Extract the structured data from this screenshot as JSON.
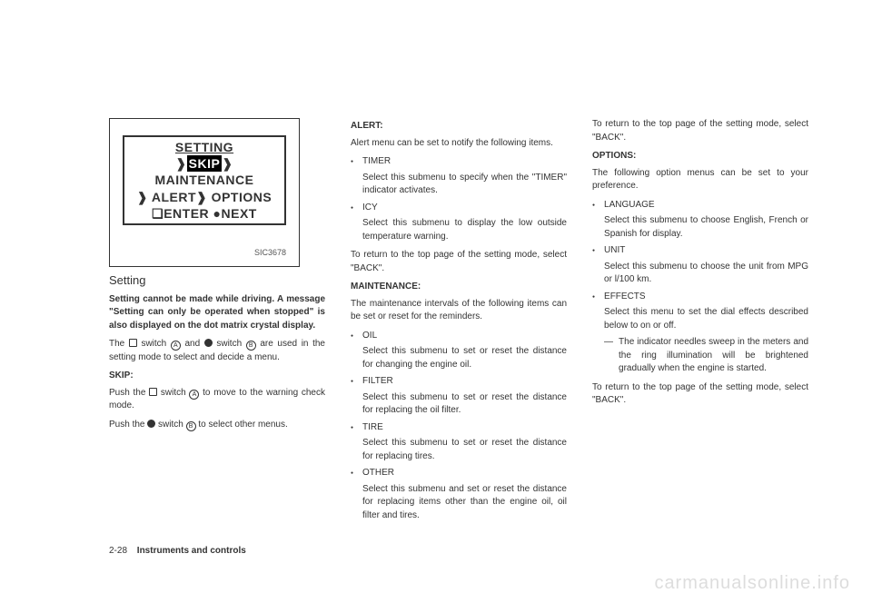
{
  "display": {
    "row1": "SETTING",
    "row2_pre": "❱",
    "row2_inv": "SKIP",
    "row2_post": "❱ MAINTENANCE",
    "row3": "❱ ALERT❱ OPTIONS",
    "row4": "❏ENTER ●NEXT",
    "code": "SIC3678"
  },
  "col1": {
    "heading": "Setting",
    "bold_para": "Setting cannot be made while driving. A message \"Setting can only be operated when stopped\" is also displayed on the dot matrix crystal display.",
    "para2_pre": "The ",
    "para2_mid1": " switch ",
    "para2_mid2": " and ",
    "para2_mid3": " switch ",
    "para2_post": " are used in the setting mode to select and decide a menu.",
    "skip_head": "SKIP:",
    "skip_p1_pre": "Push the ",
    "skip_p1_mid": " switch ",
    "skip_p1_post": " to move to the warning check mode.",
    "skip_p2_pre": "Push the ",
    "skip_p2_mid": " switch ",
    "skip_p2_post": " to select other menus."
  },
  "col2": {
    "alert_head": "ALERT:",
    "alert_intro": "Alert menu can be set to notify the following items.",
    "alert_items": [
      {
        "t": "TIMER",
        "d": "Select this submenu to specify when the \"TIMER\" indicator activates."
      },
      {
        "t": "ICY",
        "d": "Select this submenu to display the low outside temperature warning."
      }
    ],
    "alert_back": "To return to the top page of the setting mode, select \"BACK\".",
    "maint_head": "MAINTENANCE:",
    "maint_intro": "The maintenance intervals of the following items can be set or reset for the reminders.",
    "maint_items": [
      {
        "t": "OIL",
        "d": "Select this submenu to set or reset the distance for changing the engine oil."
      },
      {
        "t": "FILTER",
        "d": "Select this submenu to set or reset the distance for replacing the oil filter."
      },
      {
        "t": "TIRE",
        "d": "Select this submenu to set or reset the distance for replacing tires."
      },
      {
        "t": "OTHER",
        "d": "Select this submenu and set or reset the distance for replacing items other than the engine oil, oil filter and tires."
      }
    ]
  },
  "col3": {
    "back1": "To return to the top page of the setting mode, select \"BACK\".",
    "opt_head": "OPTIONS:",
    "opt_intro": "The following option menus can be set to your preference.",
    "opt_items": [
      {
        "t": "LANGUAGE",
        "d": "Select this submenu to choose English, French or Spanish for display."
      },
      {
        "t": "UNIT",
        "d": "Select this submenu to choose the unit from MPG or l/100 km."
      },
      {
        "t": "EFFECTS",
        "d": "Select this menu to set the dial effects described below to on or off.",
        "sub": "The indicator needles sweep in the meters and the ring illumination will be brightened gradually when the engine is started."
      }
    ],
    "back2": "To return to the top page of the setting mode, select \"BACK\"."
  },
  "footer": {
    "page": "2-28",
    "title": "Instruments and controls"
  },
  "watermark": "carmanualsonline.info"
}
